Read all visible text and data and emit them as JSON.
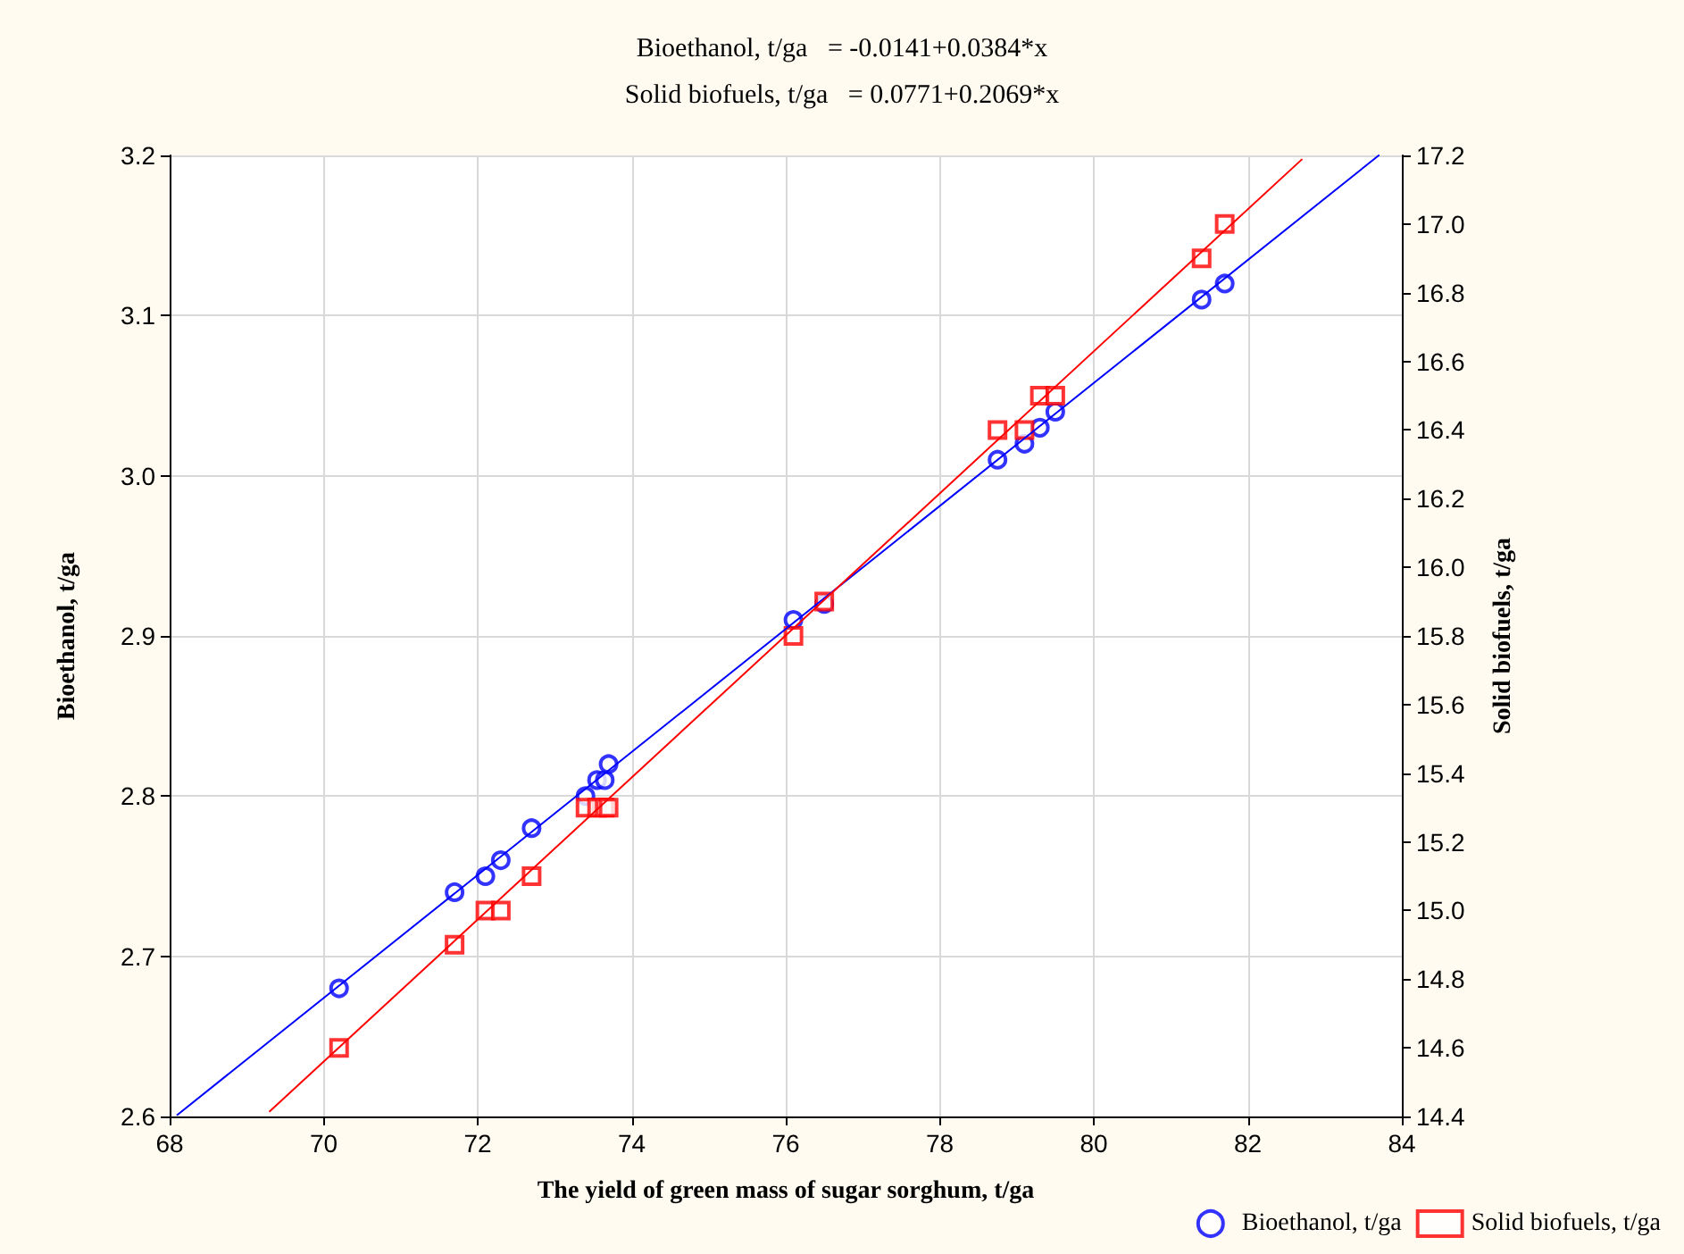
{
  "chart_data": {
    "type": "scatter",
    "annotations": [
      "Bioethanol, t/ga   = -0.0141+0.0384*x",
      "Solid biofuels, t/ga   = 0.0771+0.2069*x"
    ],
    "xlabel": "The yield of green mass of sugar sorghum, t/ga",
    "ylabel": "Bioethanol, t/ga",
    "y2label": "Solid biofuels, t/ga",
    "xlim": [
      68,
      84
    ],
    "xticks": [
      68,
      70,
      72,
      74,
      76,
      78,
      80,
      82,
      84
    ],
    "ylim": [
      2.6,
      3.2
    ],
    "yticks": [
      2.6,
      2.7,
      2.8,
      2.9,
      {
        "value": 3,
        "label": "3.0"
      },
      3.1,
      3.2
    ],
    "y2lim": [
      14.4,
      17.2
    ],
    "y2ticks": [
      14.4,
      14.6,
      14.8,
      {
        "value": 15,
        "label": "15.0"
      },
      15.2,
      15.4,
      15.6,
      15.8,
      {
        "value": 16,
        "label": "16.0"
      },
      16.2,
      16.4,
      16.6,
      16.8,
      {
        "value": 17,
        "label": "17.0"
      },
      17.2
    ],
    "grid": true,
    "legend": "bottom right",
    "series": [
      {
        "name": "Bioethanol, t/ga",
        "type": "scatter",
        "marker": "circle",
        "color": "#0000ff",
        "x": [
          70.2,
          71.7,
          72.1,
          72.3,
          72.7,
          73.4,
          73.55,
          73.65,
          73.7,
          76.1,
          76.5,
          78.75,
          79.1,
          79.3,
          79.5,
          81.4,
          81.7
        ],
        "values": [
          2.68,
          2.74,
          2.75,
          2.76,
          2.78,
          2.8,
          2.81,
          2.81,
          2.82,
          2.91,
          2.92,
          3.01,
          3.02,
          3.03,
          3.04,
          3.11,
          3.12
        ]
      },
      {
        "name": "Solid biofuels, t/ga",
        "type": "scatter",
        "marker": "square",
        "axis": "y2",
        "color": "#ff0000",
        "x": [
          70.2,
          71.7,
          72.1,
          72.3,
          72.7,
          73.4,
          73.55,
          73.65,
          73.7,
          76.1,
          76.5,
          78.75,
          79.1,
          79.3,
          79.5,
          81.4,
          81.7
        ],
        "values": [
          14.6,
          14.9,
          15.0,
          15.0,
          15.1,
          15.3,
          15.3,
          15.3,
          15.3,
          15.8,
          15.9,
          16.4,
          16.4,
          16.5,
          16.5,
          16.9,
          17.0
        ]
      },
      {
        "type": "line",
        "marker": "none",
        "color": "#0000ff",
        "x": [
          68.1,
          83.7
        ],
        "values": [
          2.601,
          3.2
        ]
      },
      {
        "type": "line",
        "marker": "none",
        "axis": "y2",
        "color": "#ff0000",
        "x": [
          69.3,
          82.7
        ],
        "values": [
          14.415,
          17.188
        ]
      }
    ]
  }
}
